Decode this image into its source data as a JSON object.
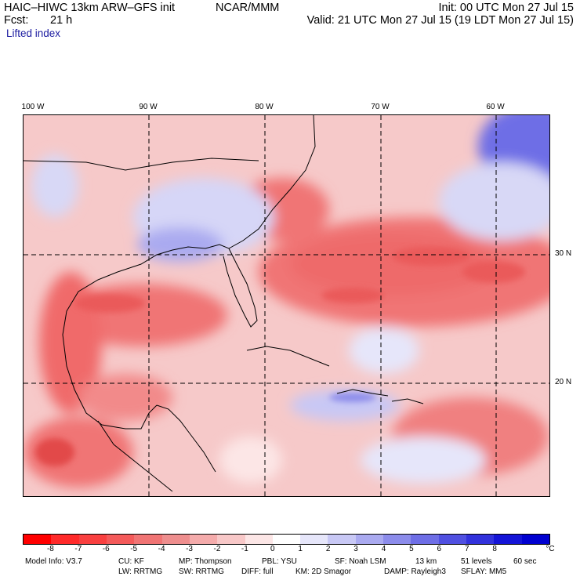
{
  "header": {
    "model_title": "HAIC–HIWC 13km ARW–GFS init",
    "org": "NCAR/MMM",
    "init": "Init: 00 UTC Mon 27 Jul 15",
    "fcst_label": "Fcst:",
    "fcst_value": "21 h",
    "valid": "Valid: 21 UTC Mon 27 Jul 15 (19 LDT Mon 27 Jul 15)",
    "field": "Lifted index"
  },
  "map": {
    "longitude_labels": [
      "100 W",
      "90 W",
      "80 W",
      "70 W",
      "60 W"
    ],
    "latitude_labels": [
      "30 N",
      "20 N"
    ],
    "colors": {
      "ocean_base": "#f6c9c9",
      "land_base": "#fbd9d9",
      "border_lines": "#000000",
      "gridlines": "#000000"
    }
  },
  "colorbar": {
    "tick_labels": [
      "-8",
      "-7",
      "-6",
      "-5",
      "-4",
      "-3",
      "-2",
      "-1",
      "0",
      "1",
      "2",
      "3",
      "4",
      "5",
      "6",
      "7",
      "8"
    ],
    "unit": "°C",
    "colors": [
      "#ff0000",
      "#ff2a2a",
      "#f94040",
      "#f45a5a",
      "#f07474",
      "#ee8e8e",
      "#f4abab",
      "#f8c8c8",
      "#fce6e6",
      "#ffffff",
      "#e6e6fa",
      "#c8c8f5",
      "#aaaaf0",
      "#8c8ceb",
      "#6e6ee6",
      "#5050e1",
      "#3232dc",
      "#1414d7",
      "#0000d0"
    ]
  },
  "footer": {
    "line1": [
      "Model Info: V3.7",
      "CU: KF",
      "MP: Thompson",
      "PBL: YSU",
      "SF: Noah LSM",
      "13 km",
      "51 levels",
      "60 sec"
    ],
    "line2": [
      "LW: RRTMG",
      "SW: RRTMG",
      "DIFF: full",
      "KM: 2D Smagor",
      "DAMP: Rayleigh3",
      "SFLAY: MM5"
    ]
  }
}
